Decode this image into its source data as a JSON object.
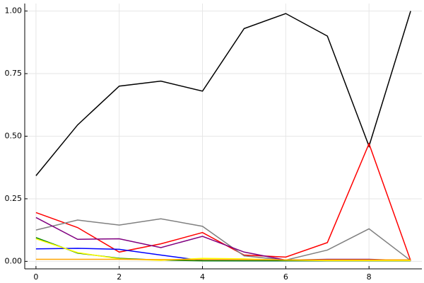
{
  "chart_data": {
    "type": "line",
    "grid": true,
    "x": [
      0,
      1,
      2,
      3,
      4,
      5,
      6,
      7,
      8,
      9
    ],
    "xlim": [
      -0.27,
      9.27
    ],
    "xticks": [
      0,
      2,
      4,
      6,
      8
    ],
    "ylim": [
      -0.03,
      1.03
    ],
    "yticks": [
      {
        "value": 0,
        "label": "0.00"
      },
      {
        "value": 0.25,
        "label": "0.25"
      },
      {
        "value": 0.5,
        "label": "0.50"
      },
      {
        "value": 0.75,
        "label": "0.75"
      },
      {
        "value": 1,
        "label": "1.00"
      }
    ],
    "series": [
      {
        "color": "#000000",
        "values": [
          0.342,
          0.545,
          0.7,
          0.72,
          0.68,
          0.93,
          0.99,
          0.9,
          0.46,
          1.0
        ]
      },
      {
        "color": "#ff0000",
        "values": [
          0.195,
          0.135,
          0.037,
          0.07,
          0.115,
          0.025,
          0.017,
          0.075,
          0.47,
          0.003
        ]
      },
      {
        "color": "#808080",
        "values": [
          0.125,
          0.165,
          0.145,
          0.17,
          0.14,
          0.022,
          0.005,
          0.045,
          0.13,
          0.003
        ]
      },
      {
        "color": "#800080",
        "values": [
          0.175,
          0.088,
          0.09,
          0.055,
          0.1,
          0.037,
          0.005,
          0.008,
          0.008,
          0.003
        ]
      },
      {
        "color": "#0000ff",
        "values": [
          0.05,
          0.052,
          0.048,
          0.025,
          0.003,
          0.002,
          0.002,
          0.002,
          0.002,
          0.002
        ]
      },
      {
        "color": "#008000",
        "values": [
          0.095,
          0.033,
          0.012,
          0.005,
          0.002,
          0.002,
          0.002,
          0.002,
          0.002,
          0.002
        ]
      },
      {
        "color": "#ffff00",
        "values": [
          0.09,
          0.035,
          0.01,
          0.004,
          0.012,
          0.01,
          0.005,
          0.003,
          0.003,
          0.003
        ]
      },
      {
        "color": "#ffa500",
        "values": [
          0.008,
          0.008,
          0.008,
          0.007,
          0.007,
          0.007,
          0.006,
          0.006,
          0.006,
          0.006
        ]
      }
    ]
  }
}
